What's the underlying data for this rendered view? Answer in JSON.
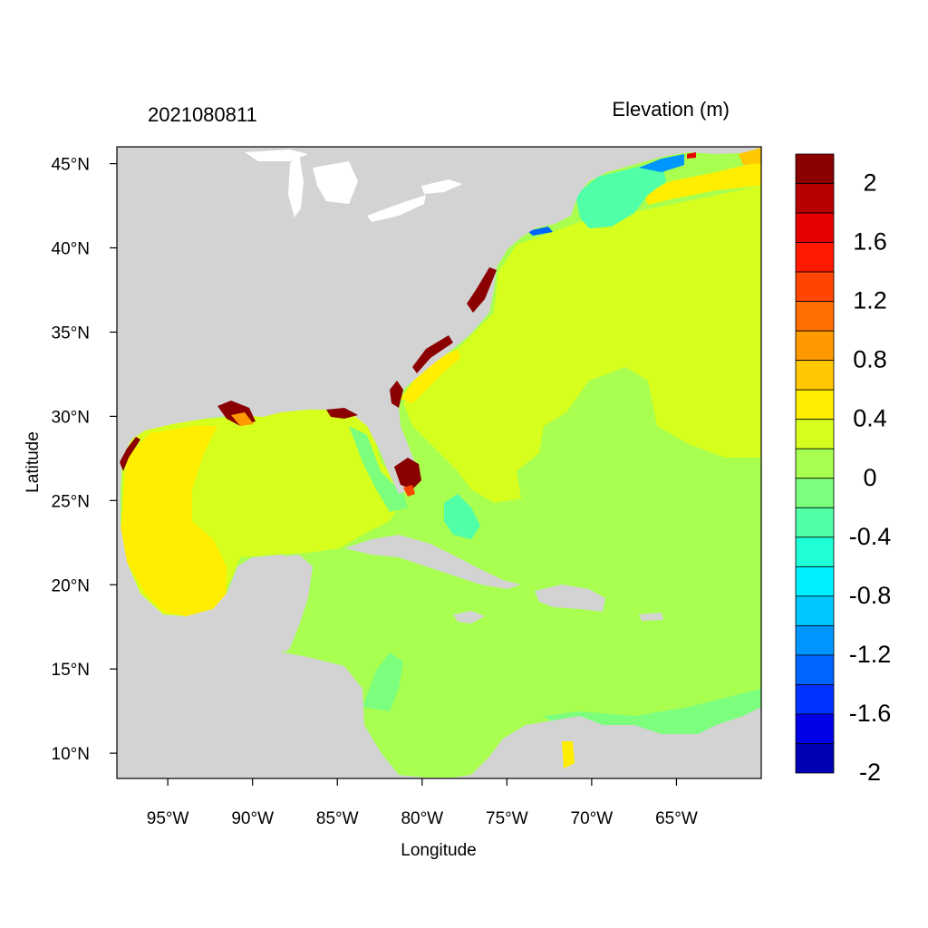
{
  "map": {
    "left_title": "2021080811",
    "right_title": "Elevation (m)",
    "x_axis_label": "Longitude",
    "y_axis_label": "Latitude",
    "lon_range": [
      -98,
      -60
    ],
    "lat_range": [
      8.5,
      46
    ],
    "lon_ticks": [
      {
        "value": -95,
        "label": "95°W"
      },
      {
        "value": -90,
        "label": "90°W"
      },
      {
        "value": -85,
        "label": "85°W"
      },
      {
        "value": -80,
        "label": "80°W"
      },
      {
        "value": -75,
        "label": "75°W"
      },
      {
        "value": -70,
        "label": "70°W"
      },
      {
        "value": -65,
        "label": "65°W"
      }
    ],
    "lat_ticks": [
      {
        "value": 45,
        "label": "45°N"
      },
      {
        "value": 40,
        "label": "40°N"
      },
      {
        "value": 35,
        "label": "35°N"
      },
      {
        "value": 30,
        "label": "30°N"
      },
      {
        "value": 25,
        "label": "25°N"
      },
      {
        "value": 20,
        "label": "20°N"
      },
      {
        "value": 15,
        "label": "15°N"
      },
      {
        "value": 10,
        "label": "10°N"
      }
    ],
    "land_color": "#d3d3d3"
  },
  "colorbar": {
    "colors_top_to_bottom": [
      "#8b0000",
      "#b80000",
      "#e60000",
      "#ff1a00",
      "#ff4500",
      "#ff6e00",
      "#ff9900",
      "#ffc800",
      "#ffee00",
      "#d7ff1e",
      "#a8ff50",
      "#7cff7c",
      "#50ffa8",
      "#1effd7",
      "#00f0ff",
      "#00c8ff",
      "#0096ff",
      "#0064ff",
      "#0032ff",
      "#0000e6",
      "#0000b4"
    ],
    "labels": [
      "2",
      "1.6",
      "1.2",
      "0.8",
      "0.4",
      "0",
      "-0.4",
      "-0.8",
      "-1.2",
      "-1.6",
      "-2"
    ]
  }
}
